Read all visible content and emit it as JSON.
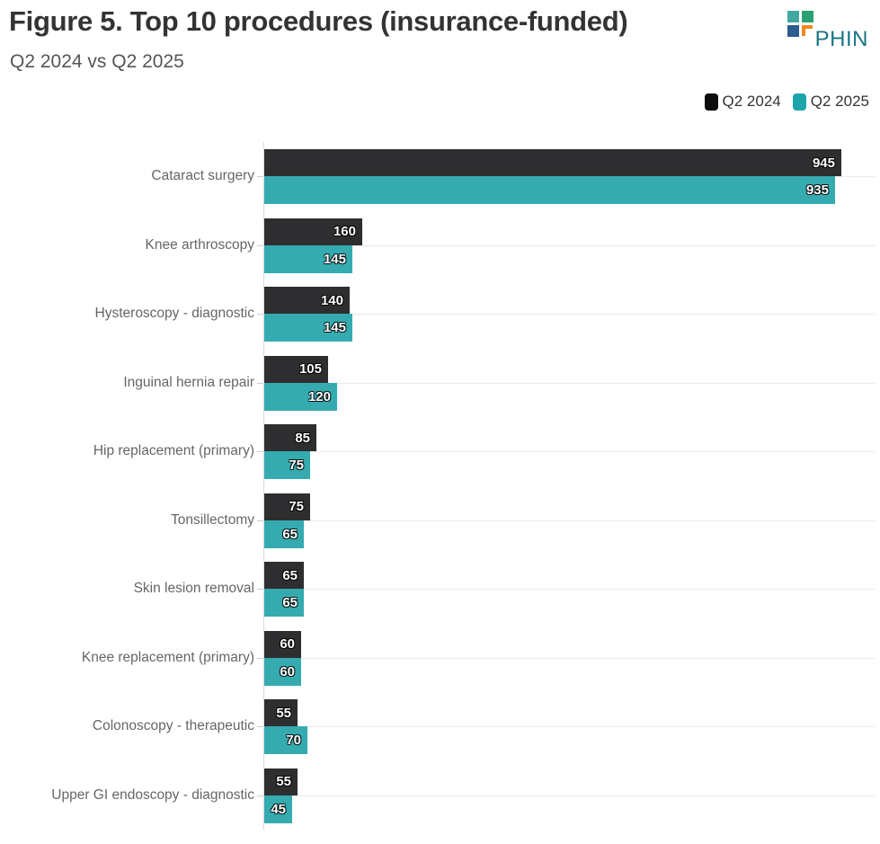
{
  "header": {
    "title": "Figure 5. Top 10 procedures (insurance-funded)",
    "subtitle": "Q2 2024 vs Q2 2025",
    "logo_text": "PHIN"
  },
  "legend": [
    {
      "label": "Q2 2024",
      "color": "#0d0d0d"
    },
    {
      "label": "Q2 2025",
      "color": "#1ea4ab"
    }
  ],
  "chart_data": {
    "type": "bar",
    "orientation": "horizontal",
    "title": "Figure 5. Top 10 procedures (insurance-funded)",
    "subtitle": "Q2 2024 vs Q2 2025",
    "xlabel": "",
    "ylabel": "",
    "xlim": [
      0,
      1000
    ],
    "grid": "category gridlines on, value gridlines off",
    "legend_position": "top-right",
    "categories": [
      "Cataract surgery",
      "Knee arthroscopy",
      "Hysteroscopy - diagnostic",
      "Inguinal hernia repair",
      "Hip replacement (primary)",
      "Tonsillectomy",
      "Skin lesion removal",
      "Knee replacement (primary)",
      "Colonoscopy - therapeutic",
      "Upper GI endoscopy - diagnostic"
    ],
    "series": [
      {
        "name": "Q2 2024",
        "color": "#2e2e30",
        "values": [
          945,
          160,
          140,
          105,
          85,
          75,
          65,
          60,
          55,
          55
        ]
      },
      {
        "name": "Q2 2025",
        "color": "#35abb0",
        "values": [
          935,
          145,
          145,
          120,
          75,
          65,
          65,
          60,
          70,
          45
        ]
      }
    ]
  },
  "colors": {
    "background": "#ffffff",
    "title_text": "#333333",
    "subtitle_text": "#555555",
    "category_label_text": "#666666",
    "bar_value_text": "#ffffff",
    "gridline": "#ebebeb",
    "axis_line": "#d8d8d8",
    "logo_teal_square": "#41a8a1",
    "logo_green_square": "#2aa173",
    "logo_blue_square": "#2c5d8f",
    "logo_orange_corner": "#f28a1e",
    "logo_text": "#1a7586"
  }
}
